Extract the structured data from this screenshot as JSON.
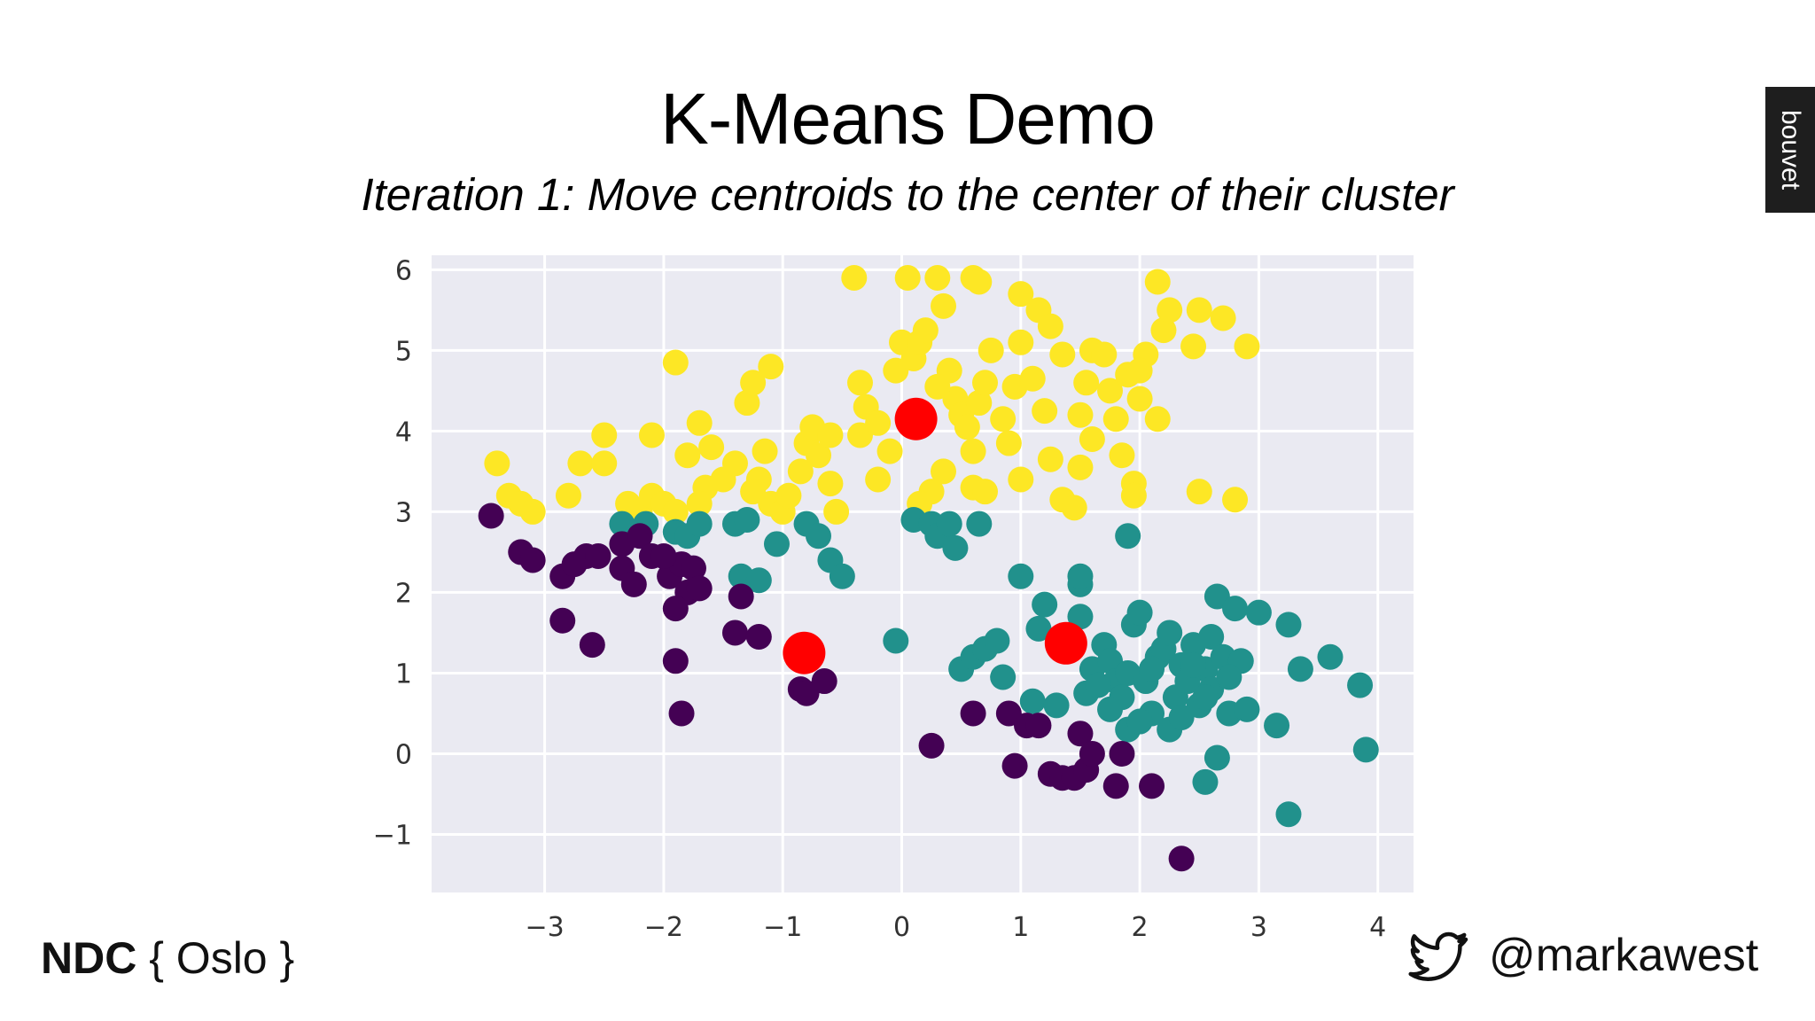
{
  "slide": {
    "title": "K-Means Demo",
    "subtitle": "Iteration 1: Move centroids to the center of their cluster",
    "brand": "bouvet",
    "footer_left": {
      "bold": "NDC",
      "rest": " { Oslo }"
    },
    "footer_right": {
      "icon": "bird-icon",
      "handle": "@markawest"
    }
  },
  "chart_data": {
    "type": "scatter",
    "title": "",
    "xlabel": "",
    "ylabel": "",
    "xlim": [
      -3.95,
      4.3
    ],
    "ylim": [
      -1.72,
      6.18
    ],
    "xticks": [
      -3,
      -2,
      -1,
      0,
      1,
      2,
      3,
      4
    ],
    "yticks": [
      -1,
      0,
      1,
      2,
      3,
      4,
      5,
      6
    ],
    "xtick_labels": [
      "−3",
      "−2",
      "−1",
      "0",
      "1",
      "2",
      "3",
      "4"
    ],
    "ytick_labels": [
      "−1",
      "0",
      "1",
      "2",
      "3",
      "4",
      "5",
      "6"
    ],
    "grid": true,
    "background": "#eaeaf2",
    "series": [
      {
        "color": "#fde725",
        "points": [
          [
            -3.4,
            3.6
          ],
          [
            -3.3,
            3.2
          ],
          [
            -3.2,
            3.1
          ],
          [
            -3.1,
            3.0
          ],
          [
            -2.8,
            3.2
          ],
          [
            -2.7,
            3.6
          ],
          [
            -2.5,
            3.6
          ],
          [
            -2.5,
            3.95
          ],
          [
            -2.3,
            3.1
          ],
          [
            -2.2,
            3.0
          ],
          [
            -2.1,
            3.2
          ],
          [
            -2.0,
            3.1
          ],
          [
            -1.9,
            4.85
          ],
          [
            -2.1,
            3.95
          ],
          [
            -1.9,
            3.0
          ],
          [
            -1.8,
            3.7
          ],
          [
            -1.7,
            4.1
          ],
          [
            -1.6,
            3.8
          ],
          [
            -1.65,
            3.3
          ],
          [
            -1.7,
            3.1
          ],
          [
            -1.5,
            3.4
          ],
          [
            -1.4,
            3.6
          ],
          [
            -1.3,
            4.35
          ],
          [
            -1.25,
            4.6
          ],
          [
            -1.15,
            3.75
          ],
          [
            -1.1,
            4.8
          ],
          [
            -1.2,
            3.4
          ],
          [
            -1.25,
            3.25
          ],
          [
            -1.1,
            3.1
          ],
          [
            -1.0,
            3.0
          ],
          [
            -0.95,
            3.2
          ],
          [
            -0.85,
            3.5
          ],
          [
            -0.8,
            3.85
          ],
          [
            -0.75,
            4.05
          ],
          [
            -0.7,
            3.7
          ],
          [
            -0.6,
            3.95
          ],
          [
            -0.6,
            3.35
          ],
          [
            -0.55,
            3.0
          ],
          [
            -0.4,
            5.9
          ],
          [
            -0.35,
            4.6
          ],
          [
            -0.3,
            4.3
          ],
          [
            -0.35,
            3.95
          ],
          [
            -0.2,
            3.4
          ],
          [
            -0.1,
            3.75
          ],
          [
            -0.05,
            4.75
          ],
          [
            0.0,
            5.1
          ],
          [
            0.05,
            5.9
          ],
          [
            0.1,
            4.9
          ],
          [
            0.15,
            5.1
          ],
          [
            0.2,
            5.25
          ],
          [
            0.3,
            5.9
          ],
          [
            0.35,
            5.55
          ],
          [
            0.4,
            4.75
          ],
          [
            0.45,
            4.4
          ],
          [
            0.5,
            4.2
          ],
          [
            0.55,
            4.05
          ],
          [
            0.35,
            3.5
          ],
          [
            0.25,
            3.25
          ],
          [
            0.15,
            3.1
          ],
          [
            0.6,
            3.75
          ],
          [
            0.65,
            4.35
          ],
          [
            0.7,
            4.6
          ],
          [
            0.75,
            5.0
          ],
          [
            0.6,
            5.9
          ],
          [
            0.65,
            5.85
          ],
          [
            0.6,
            3.3
          ],
          [
            0.7,
            3.25
          ],
          [
            0.9,
            3.85
          ],
          [
            0.95,
            4.55
          ],
          [
            1.0,
            5.1
          ],
          [
            1.0,
            5.7
          ],
          [
            1.15,
            5.5
          ],
          [
            1.25,
            5.3
          ],
          [
            1.1,
            4.65
          ],
          [
            1.2,
            4.25
          ],
          [
            1.0,
            3.4
          ],
          [
            1.25,
            3.65
          ],
          [
            1.35,
            3.15
          ],
          [
            1.45,
            3.05
          ],
          [
            1.5,
            3.55
          ],
          [
            1.5,
            4.2
          ],
          [
            1.55,
            4.6
          ],
          [
            1.6,
            5.0
          ],
          [
            1.7,
            4.95
          ],
          [
            1.75,
            4.5
          ],
          [
            1.8,
            4.15
          ],
          [
            1.85,
            3.7
          ],
          [
            1.95,
            3.35
          ],
          [
            1.95,
            3.2
          ],
          [
            1.9,
            4.7
          ],
          [
            2.0,
            4.4
          ],
          [
            2.05,
            4.95
          ],
          [
            2.2,
            5.25
          ],
          [
            2.25,
            5.5
          ],
          [
            2.15,
            5.85
          ],
          [
            2.45,
            5.05
          ],
          [
            2.5,
            5.5
          ],
          [
            2.7,
            5.4
          ],
          [
            2.9,
            5.05
          ],
          [
            2.5,
            3.25
          ],
          [
            2.8,
            3.15
          ],
          [
            2.0,
            4.75
          ],
          [
            1.35,
            4.95
          ],
          [
            0.85,
            4.15
          ],
          [
            0.3,
            4.55
          ],
          [
            -0.2,
            4.1
          ],
          [
            1.6,
            3.9
          ],
          [
            2.15,
            4.15
          ]
        ]
      },
      {
        "color": "#21918c",
        "points": [
          [
            -2.35,
            2.85
          ],
          [
            -2.15,
            2.85
          ],
          [
            -1.9,
            2.75
          ],
          [
            -1.8,
            2.7
          ],
          [
            -1.7,
            2.85
          ],
          [
            -1.4,
            2.85
          ],
          [
            -1.3,
            2.9
          ],
          [
            -1.35,
            2.2
          ],
          [
            -1.2,
            2.15
          ],
          [
            -1.05,
            2.6
          ],
          [
            -0.8,
            2.85
          ],
          [
            -0.7,
            2.7
          ],
          [
            -0.6,
            2.4
          ],
          [
            -0.5,
            2.2
          ],
          [
            0.1,
            2.9
          ],
          [
            0.25,
            2.85
          ],
          [
            0.3,
            2.7
          ],
          [
            0.4,
            2.85
          ],
          [
            0.45,
            2.55
          ],
          [
            0.65,
            2.85
          ],
          [
            -0.05,
            1.4
          ],
          [
            0.5,
            1.05
          ],
          [
            0.6,
            1.2
          ],
          [
            0.7,
            1.3
          ],
          [
            0.8,
            1.4
          ],
          [
            0.85,
            0.95
          ],
          [
            1.0,
            2.2
          ],
          [
            1.2,
            1.85
          ],
          [
            1.15,
            1.55
          ],
          [
            1.1,
            0.65
          ],
          [
            1.3,
            0.6
          ],
          [
            1.5,
            1.7
          ],
          [
            1.5,
            2.1
          ],
          [
            1.5,
            2.2
          ],
          [
            1.55,
            0.75
          ],
          [
            1.6,
            1.05
          ],
          [
            1.7,
            1.35
          ],
          [
            1.75,
            1.15
          ],
          [
            1.8,
            0.9
          ],
          [
            1.85,
            0.7
          ],
          [
            1.9,
            1.0
          ],
          [
            1.9,
            0.3
          ],
          [
            1.95,
            1.6
          ],
          [
            2.0,
            1.75
          ],
          [
            2.05,
            0.9
          ],
          [
            2.1,
            0.5
          ],
          [
            2.15,
            1.2
          ],
          [
            2.2,
            1.3
          ],
          [
            2.25,
            1.5
          ],
          [
            2.3,
            0.7
          ],
          [
            2.35,
            1.1
          ],
          [
            2.4,
            0.9
          ],
          [
            2.45,
            1.35
          ],
          [
            2.5,
            0.6
          ],
          [
            2.55,
            1.05
          ],
          [
            2.6,
            1.45
          ],
          [
            2.6,
            0.8
          ],
          [
            2.65,
            1.95
          ],
          [
            2.7,
            1.2
          ],
          [
            2.75,
            0.5
          ],
          [
            2.8,
            1.8
          ],
          [
            2.85,
            1.15
          ],
          [
            2.9,
            0.55
          ],
          [
            3.0,
            1.75
          ],
          [
            3.15,
            0.35
          ],
          [
            3.25,
            1.6
          ],
          [
            3.35,
            1.05
          ],
          [
            3.6,
            1.2
          ],
          [
            3.85,
            0.85
          ],
          [
            3.9,
            0.05
          ],
          [
            3.25,
            -0.75
          ],
          [
            2.55,
            -0.35
          ],
          [
            2.65,
            -0.05
          ],
          [
            2.0,
            0.4
          ],
          [
            2.25,
            0.3
          ],
          [
            1.9,
            2.7
          ],
          [
            1.75,
            0.55
          ],
          [
            2.45,
            1.1
          ],
          [
            2.55,
            0.7
          ],
          [
            2.75,
            0.95
          ],
          [
            2.1,
            1.05
          ],
          [
            2.35,
            0.45
          ],
          [
            1.65,
            0.85
          ]
        ]
      },
      {
        "color": "#440154",
        "points": [
          [
            -3.45,
            2.95
          ],
          [
            -3.2,
            2.5
          ],
          [
            -3.1,
            2.4
          ],
          [
            -2.85,
            2.2
          ],
          [
            -2.75,
            2.35
          ],
          [
            -2.65,
            2.45
          ],
          [
            -2.55,
            2.45
          ],
          [
            -2.35,
            2.6
          ],
          [
            -2.35,
            2.3
          ],
          [
            -2.25,
            2.1
          ],
          [
            -2.2,
            2.7
          ],
          [
            -2.1,
            2.45
          ],
          [
            -1.95,
            2.2
          ],
          [
            -1.85,
            2.35
          ],
          [
            -1.8,
            2.0
          ],
          [
            -1.75,
            2.3
          ],
          [
            -1.9,
            1.8
          ],
          [
            -2.85,
            1.65
          ],
          [
            -2.6,
            1.35
          ],
          [
            -1.9,
            1.15
          ],
          [
            -1.85,
            0.5
          ],
          [
            -1.35,
            1.95
          ],
          [
            -1.4,
            1.5
          ],
          [
            -1.2,
            1.45
          ],
          [
            -0.85,
            0.8
          ],
          [
            -0.8,
            0.75
          ],
          [
            -0.65,
            0.9
          ],
          [
            0.25,
            0.1
          ],
          [
            0.6,
            0.5
          ],
          [
            0.9,
            0.5
          ],
          [
            1.05,
            0.35
          ],
          [
            1.15,
            0.35
          ],
          [
            1.5,
            0.25
          ],
          [
            0.95,
            -0.15
          ],
          [
            1.25,
            -0.25
          ],
          [
            1.35,
            -0.3
          ],
          [
            1.45,
            -0.3
          ],
          [
            1.55,
            -0.2
          ],
          [
            1.6,
            0.0
          ],
          [
            1.8,
            -0.4
          ],
          [
            1.85,
            0.0
          ],
          [
            2.1,
            -0.4
          ],
          [
            2.35,
            -1.3
          ],
          [
            -2.0,
            2.45
          ],
          [
            -1.7,
            2.05
          ]
        ]
      },
      {
        "name": "",
        "color": "#ff0000",
        "size": "large",
        "points": [
          [
            0.12,
            4.15
          ],
          [
            -0.82,
            1.25
          ],
          [
            1.38,
            1.37
          ]
        ]
      }
    ]
  }
}
